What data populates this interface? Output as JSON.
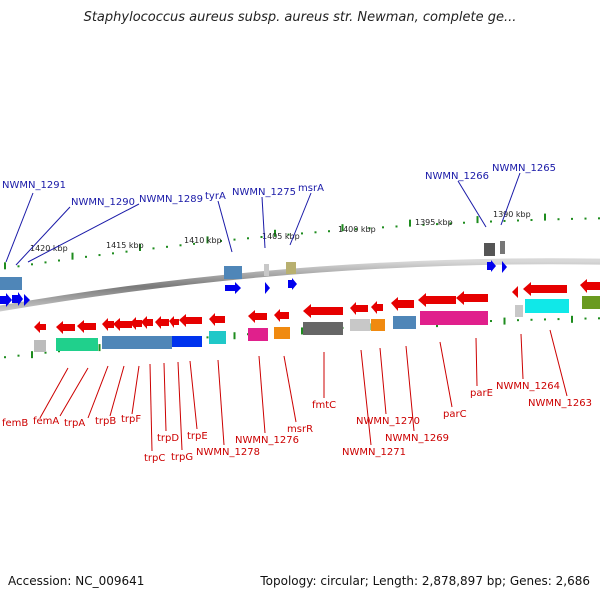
{
  "title": "Staphylococcus aureus subsp. aureus str. Newman, complete ge...",
  "footer": {
    "accession": "Accession: NC_009641",
    "summary": "Topology: circular; Length: 2,878,897 bp; Genes: 2,686"
  },
  "scale_labels": [
    "1420 kbp",
    "1415 kbp",
    "1410 kbp",
    "1405 kbp",
    "1400 kbp",
    "1395 kbp",
    "1390 kbp"
  ],
  "top_genes": [
    "NWMN_1291",
    "NWMN_1290",
    "NWMN_1289",
    "tyrA",
    "NWMN_1275",
    "msrA",
    "NWMN_1266",
    "NWMN_1265"
  ],
  "bottom_genes": [
    "femB",
    "femA",
    "trpA",
    "trpB",
    "trpF",
    "trpC",
    "trpD",
    "trpG",
    "trpE",
    "NWMN_1278",
    "NWMN_1276",
    "msrR",
    "fmtC",
    "NWMN_1271",
    "NWMN_1270",
    "NWMN_1269",
    "parC",
    "parE",
    "NWMN_1264",
    "NWMN_1263"
  ],
  "colors": {
    "forward_label": "#1a1aa8",
    "reverse_label": "#cc0000",
    "arrow": "#e60000",
    "forward_arrow": "#0000ee",
    "tick": "#1e8c1e",
    "backbone": "#8a8a8a"
  }
}
